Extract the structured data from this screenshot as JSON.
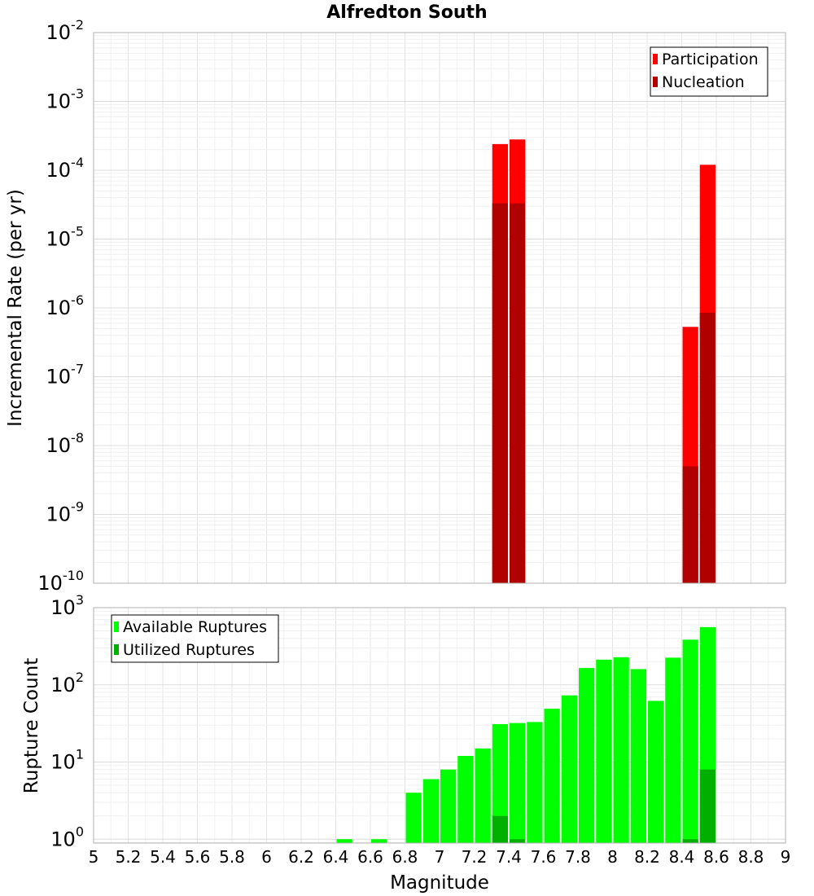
{
  "chart_data": {
    "title": "Alfredton South",
    "xlabel": "Magnitude",
    "xlim": [
      5,
      9
    ],
    "xticks": [
      5,
      5.2,
      5.4,
      5.6,
      5.8,
      6,
      6.2,
      6.4,
      6.6,
      6.8,
      7,
      7.2,
      7.4,
      7.6,
      7.8,
      8,
      8.2,
      8.4,
      8.6,
      8.8,
      9
    ],
    "xtick_labels": [
      "5",
      "5.2",
      "5.4",
      "5.6",
      "5.8",
      "6",
      "6.2",
      "6.4",
      "6.6",
      "6.8",
      "7",
      "7.2",
      "7.4",
      "7.6",
      "7.8",
      "8",
      "8.2",
      "8.4",
      "8.6",
      "8.8",
      "9"
    ],
    "bin_width": 0.1,
    "panels": [
      {
        "type": "bar",
        "ylabel": "Incremental Rate (per yr)",
        "yscale": "log",
        "ylim_exp": [
          -10,
          -2
        ],
        "ytick_labels": [
          {
            "base": "10",
            "exp": "-10"
          },
          {
            "base": "10",
            "exp": "-9"
          },
          {
            "base": "10",
            "exp": "-8"
          },
          {
            "base": "10",
            "exp": "-7"
          },
          {
            "base": "10",
            "exp": "-6"
          },
          {
            "base": "10",
            "exp": "-5"
          },
          {
            "base": "10",
            "exp": "-4"
          },
          {
            "base": "10",
            "exp": "-3"
          },
          {
            "base": "10",
            "exp": "-2"
          }
        ],
        "grid": true,
        "legend_position": "top-right",
        "series": [
          {
            "name": "Participation",
            "color": "#ff0000",
            "x": [
              7.35,
              7.45,
              8.45,
              8.55
            ],
            "values": [
              0.00024,
              0.00028,
              5.3e-07,
              0.00012
            ]
          },
          {
            "name": "Nucleation",
            "color": "#b00000",
            "x": [
              7.35,
              7.45,
              8.45,
              8.55
            ],
            "values": [
              3.3e-05,
              3.3e-05,
              5e-09,
              8.5e-07
            ]
          }
        ]
      },
      {
        "type": "bar",
        "ylabel": "Rupture Count",
        "yscale": "log",
        "ylim_exp": [
          -0.05,
          3
        ],
        "ytick_labels": [
          {
            "base": "10",
            "exp": "0"
          },
          {
            "base": "10",
            "exp": "1"
          },
          {
            "base": "10",
            "exp": "2"
          },
          {
            "base": "10",
            "exp": "3"
          }
        ],
        "grid": true,
        "legend_position": "top-left",
        "series": [
          {
            "name": "Available Ruptures",
            "color": "#00ff00",
            "x": [
              6.45,
              6.65,
              6.85,
              6.95,
              7.05,
              7.15,
              7.25,
              7.35,
              7.45,
              7.55,
              7.65,
              7.75,
              7.85,
              7.95,
              8.05,
              8.15,
              8.25,
              8.35,
              8.45,
              8.55
            ],
            "values": [
              1,
              1,
              4,
              6,
              8,
              12,
              15,
              31,
              32,
              33,
              49,
              73,
              165,
              212,
              228,
              160,
              62,
              225,
              385,
              560
            ]
          },
          {
            "name": "Utilized Ruptures",
            "color": "#00b000",
            "x": [
              7.35,
              7.45,
              8.45,
              8.55
            ],
            "values": [
              2,
              1,
              1,
              8
            ]
          }
        ]
      }
    ]
  }
}
